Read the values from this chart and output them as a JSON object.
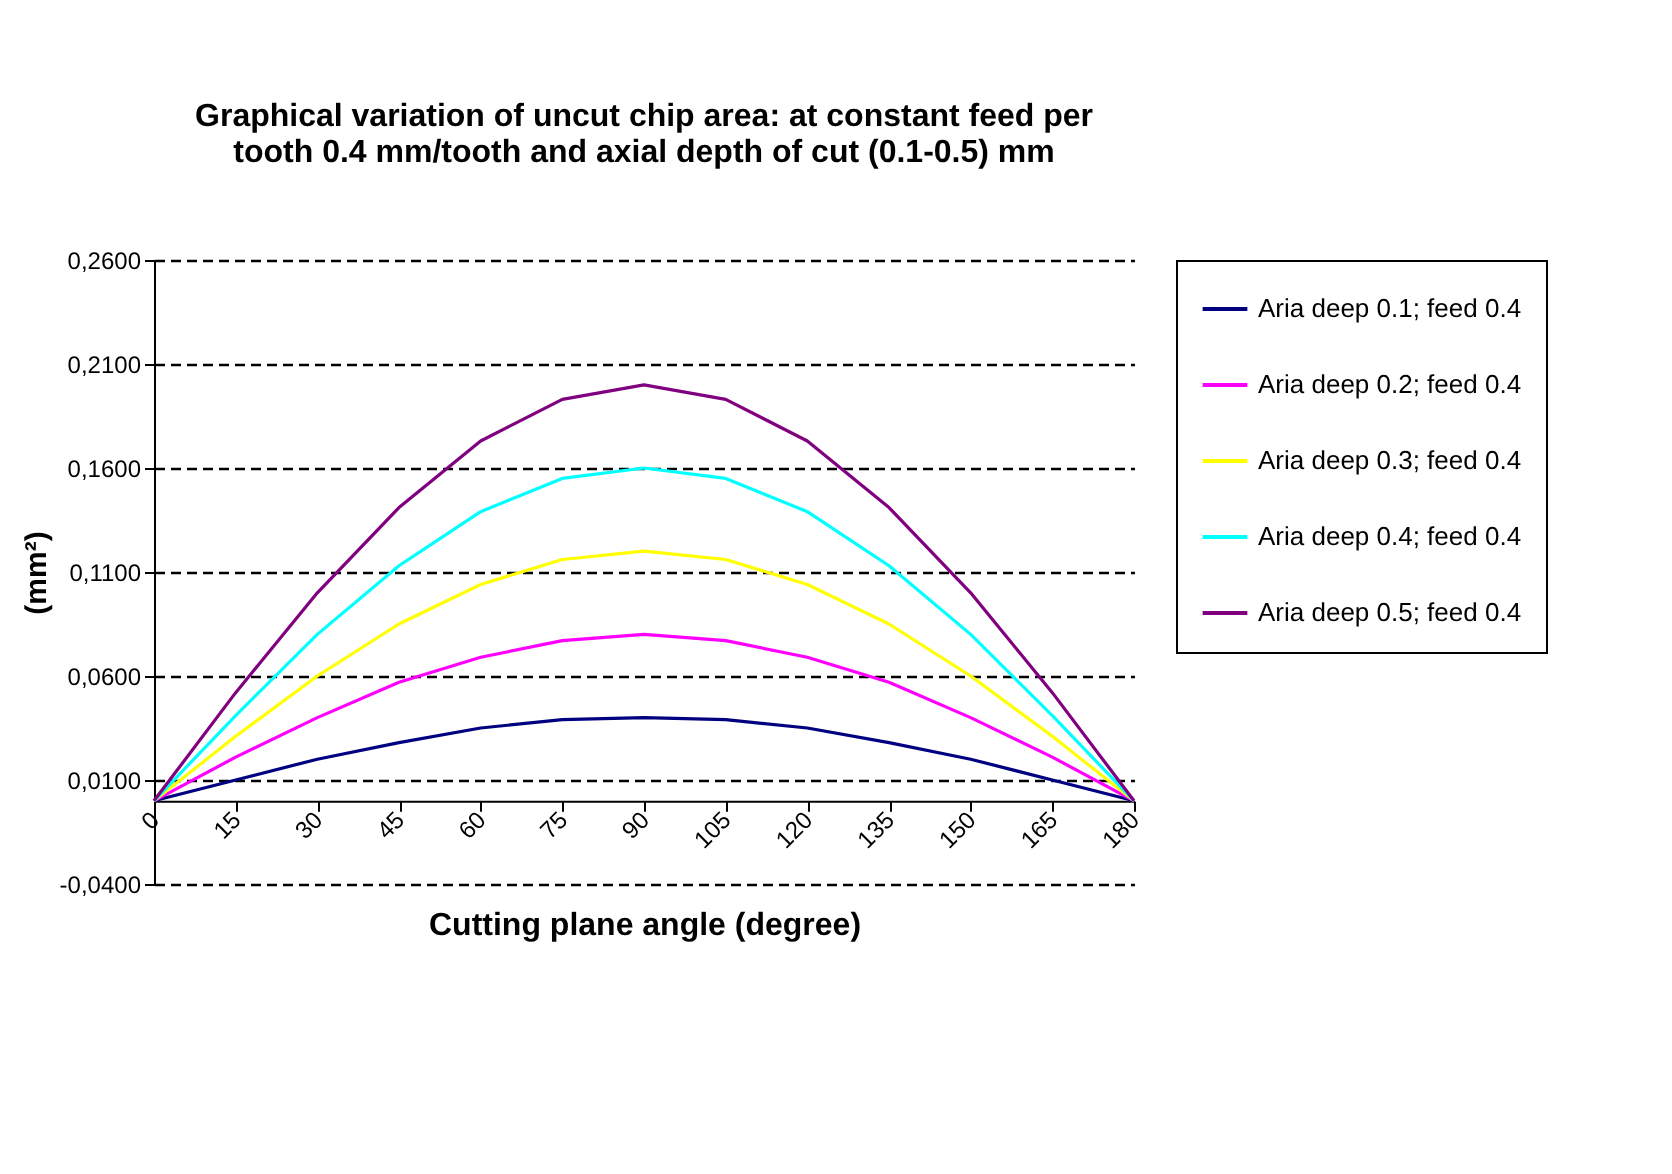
{
  "chart_data": {
    "type": "line",
    "title": "Graphical variation of uncut chip area: at constant feed per\ntooth 0.4 mm/tooth and axial depth of cut (0.1-0.5) mm",
    "xlabel": "Cutting plane angle (degree)",
    "ylabel": "(mm²)",
    "x": [
      0,
      15,
      30,
      45,
      60,
      75,
      90,
      105,
      120,
      135,
      150,
      165,
      180
    ],
    "series": [
      {
        "name": "Aria deep 0.1; feed 0.4",
        "color": "#000080",
        "values": [
          0,
          0.01,
          0.02,
          0.028,
          0.035,
          0.039,
          0.04,
          0.039,
          0.035,
          0.028,
          0.02,
          0.01,
          0
        ]
      },
      {
        "name": "Aria deep 0.2; feed 0.4",
        "color": "#ff00ff",
        "values": [
          0,
          0.021,
          0.04,
          0.057,
          0.069,
          0.077,
          0.08,
          0.077,
          0.069,
          0.057,
          0.04,
          0.021,
          0
        ]
      },
      {
        "name": "Aria deep 0.3; feed 0.4",
        "color": "#ffff00",
        "values": [
          0,
          0.031,
          0.06,
          0.085,
          0.104,
          0.116,
          0.12,
          0.116,
          0.104,
          0.085,
          0.06,
          0.031,
          0
        ]
      },
      {
        "name": "Aria deep 0.4; feed 0.4",
        "color": "#00ffff",
        "values": [
          0,
          0.041,
          0.08,
          0.113,
          0.139,
          0.155,
          0.16,
          0.155,
          0.139,
          0.113,
          0.08,
          0.041,
          0
        ]
      },
      {
        "name": "Aria deep 0.5; feed 0.4",
        "color": "#800080",
        "values": [
          0,
          0.052,
          0.1,
          0.141,
          0.173,
          0.193,
          0.2,
          0.193,
          0.173,
          0.141,
          0.1,
          0.052,
          0
        ]
      }
    ],
    "xlim": [
      0,
      180
    ],
    "xticks": [
      0,
      15,
      30,
      45,
      60,
      75,
      90,
      105,
      120,
      135,
      150,
      165,
      180
    ],
    "ylim": [
      -0.04,
      0.26
    ],
    "yticks": [
      {
        "value": -0.04,
        "label": "-0,0400"
      },
      {
        "value": 0.01,
        "label": "0,0100"
      },
      {
        "value": 0.06,
        "label": "0,0600"
      },
      {
        "value": 0.11,
        "label": "0,1100"
      },
      {
        "value": 0.16,
        "label": "0,1600"
      },
      {
        "value": 0.21,
        "label": "0,2100"
      },
      {
        "value": 0.26,
        "label": "0,2600"
      }
    ],
    "grid": "y",
    "legend": "right",
    "marker": "none",
    "line_style": "solid"
  }
}
